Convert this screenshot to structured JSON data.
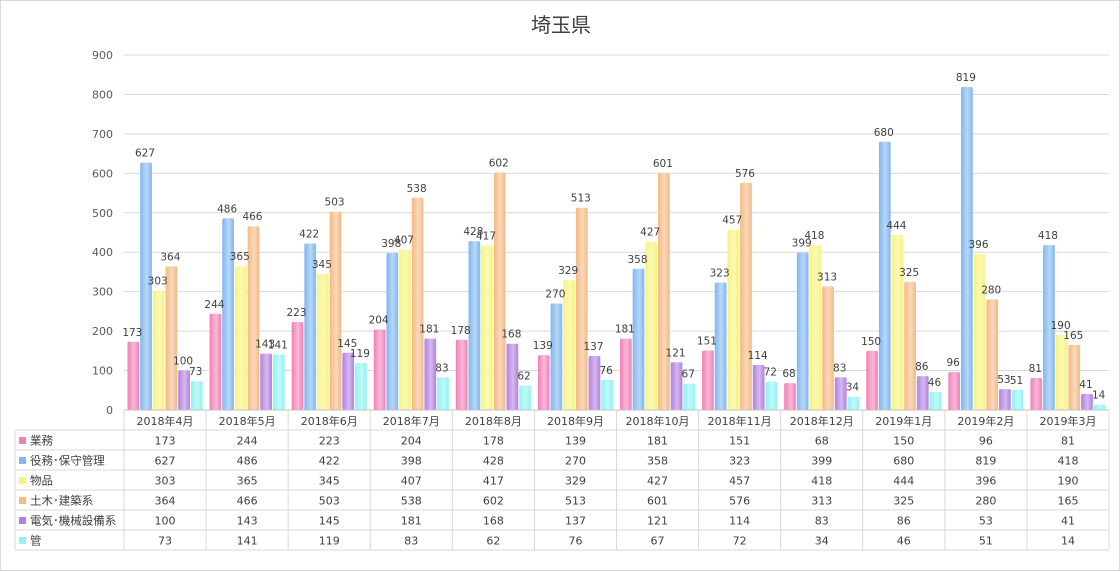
{
  "chart_data": {
    "type": "bar",
    "title": "埼玉県",
    "categories": [
      "2018年4月",
      "2018年5月",
      "2018年6月",
      "2018年7月",
      "2018年8月",
      "2018年9月",
      "2018年10月",
      "2018年11月",
      "2018年12月",
      "2019年1月",
      "2019年2月",
      "2019年3月"
    ],
    "ylim": [
      0,
      900
    ],
    "yticks": [
      "0",
      "100",
      "200",
      "300",
      "400",
      "500",
      "600",
      "700",
      "800",
      "900"
    ],
    "grid": true,
    "legend": "data-table",
    "series": [
      {
        "name": "業務",
        "color": "#f27fb8",
        "values": [
          173,
          244,
          223,
          204,
          178,
          139,
          181,
          151,
          68,
          150,
          96,
          81
        ]
      },
      {
        "name": "役務･保守管理",
        "color": "#7fb7ef",
        "values": [
          627,
          486,
          422,
          398,
          428,
          270,
          358,
          323,
          399,
          680,
          819,
          418
        ]
      },
      {
        "name": "物品",
        "color": "#f7f37e",
        "values": [
          303,
          365,
          345,
          407,
          417,
          329,
          427,
          457,
          418,
          444,
          396,
          190
        ]
      },
      {
        "name": "土木･建築系",
        "color": "#f4b984",
        "values": [
          364,
          466,
          503,
          538,
          602,
          513,
          601,
          576,
          313,
          325,
          280,
          165
        ]
      },
      {
        "name": "電気･機械設備系",
        "color": "#b37fe0",
        "values": [
          100,
          143,
          145,
          181,
          168,
          137,
          121,
          114,
          83,
          86,
          53,
          41
        ]
      },
      {
        "name": "管",
        "color": "#8ff3f3",
        "values": [
          73,
          141,
          119,
          83,
          62,
          76,
          67,
          72,
          34,
          46,
          51,
          14
        ]
      }
    ]
  }
}
